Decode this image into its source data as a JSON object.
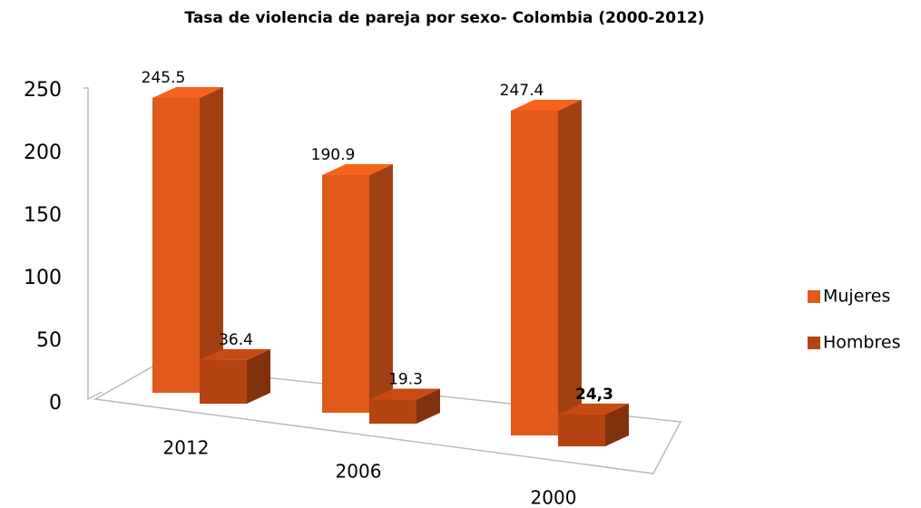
{
  "chart_data": {
    "type": "bar3d",
    "title": "Tasa de violencia de pareja por sexo- Colombia (2000-2012)",
    "categories": [
      "2012",
      "2006",
      "2000"
    ],
    "series": [
      {
        "name": "Mujeres",
        "color": "#e05a1a",
        "values": [
          245.5,
          190.9,
          247.4
        ]
      },
      {
        "name": "Hombres",
        "color": "#b54412",
        "values": [
          36.4,
          19.3,
          24.3
        ],
        "value_labels": [
          "36.4",
          "19.3",
          "24,3"
        ]
      }
    ],
    "ylim": [
      0,
      250
    ],
    "yticks": [
      0,
      50,
      100,
      150,
      200,
      250
    ],
    "legend": "right"
  }
}
